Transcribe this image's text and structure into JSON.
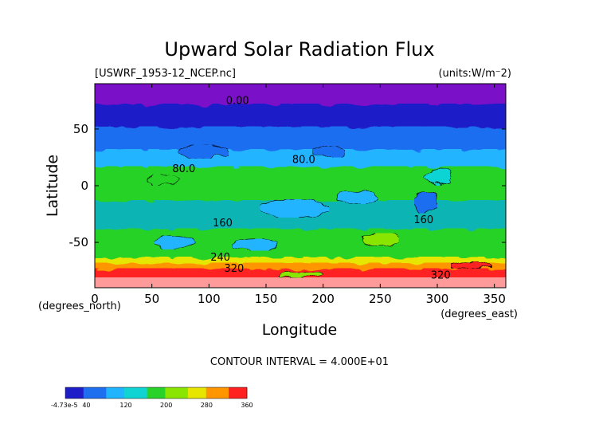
{
  "chart_data": {
    "type": "heatmap",
    "title": "Upward Solar Radiation Flux",
    "file_label": "[USWRF_1953-12_NCEP.nc]",
    "units_label": "(units:W/m^2)",
    "xlabel": "Longitude",
    "ylabel": "Latitude",
    "x_unit_label": "(degrees_east)",
    "y_unit_label": "(degrees_north)",
    "xlim": [
      0,
      360
    ],
    "ylim": [
      -90,
      90
    ],
    "x_ticks": [
      0,
      50,
      100,
      150,
      200,
      250,
      300,
      350
    ],
    "y_ticks": [
      -50,
      0,
      50
    ],
    "contour_interval_text": "CONTOUR INTERVAL = 4.000E+01",
    "contour_labels": [
      {
        "text": "0.00",
        "lon": 125,
        "lat": 72
      },
      {
        "text": "80.0",
        "lon": 78,
        "lat": 12
      },
      {
        "text": "80.0",
        "lon": 183,
        "lat": 20
      },
      {
        "text": "160",
        "lon": 112,
        "lat": -36
      },
      {
        "text": "160",
        "lon": 288,
        "lat": -33
      },
      {
        "text": "240",
        "lon": 110,
        "lat": -66
      },
      {
        "text": "320",
        "lon": 122,
        "lat": -76
      },
      {
        "text": "320",
        "lon": 303,
        "lat": -82
      }
    ],
    "colorbar": {
      "levels": [
        -4.73e-05,
        40,
        80,
        120,
        160,
        200,
        240,
        280,
        320,
        360
      ],
      "tick_labels": [
        "-4.73e-5",
        "40",
        "120",
        "200",
        "280",
        "360"
      ],
      "colors": [
        "#1e1ec8",
        "#1e6ef0",
        "#20b4ff",
        "#10d4d4",
        "#28d228",
        "#8ae600",
        "#e6e600",
        "#ff9600",
        "#ff2020",
        "#ff9a9a"
      ]
    },
    "bands": [
      {
        "lat_min": 70,
        "lat_max": 90,
        "color": "#7a10c8",
        "value": "0"
      },
      {
        "lat_min": 50,
        "lat_max": 70,
        "color": "#1e1ec8",
        "value": "0-40"
      },
      {
        "lat_min": 30,
        "lat_max": 50,
        "color": "#1e6ef0",
        "value": "40-80"
      },
      {
        "lat_min": 15,
        "lat_max": 30,
        "color": "#20b4ff",
        "value": "80-120"
      },
      {
        "lat_min": -15,
        "lat_max": 15,
        "color": "#28d228",
        "value": "120-160"
      },
      {
        "lat_min": -40,
        "lat_max": -15,
        "color": "#10b4b4",
        "value": "120-160"
      },
      {
        "lat_min": -65,
        "lat_max": -40,
        "color": "#28d228",
        "value": "160-200"
      },
      {
        "lat_min": -70,
        "lat_max": -65,
        "color": "#e6e600",
        "value": "240-280"
      },
      {
        "lat_min": -75,
        "lat_max": -70,
        "color": "#ff9600",
        "value": "280-320"
      },
      {
        "lat_min": -83,
        "lat_max": -75,
        "color": "#ff2020",
        "value": "320-360"
      },
      {
        "lat_min": -90,
        "lat_max": -83,
        "color": "#ff9a9a",
        "value": ">360"
      }
    ]
  }
}
